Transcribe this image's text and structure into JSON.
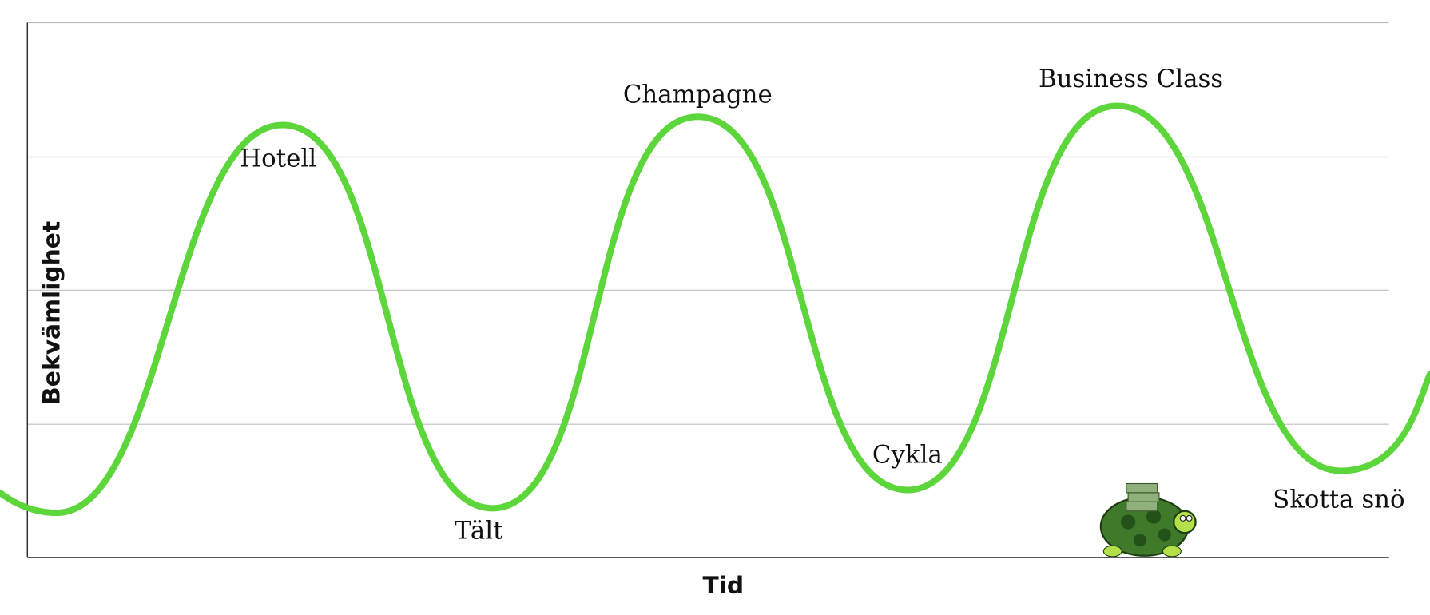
{
  "axes": {
    "x_label": "Tid",
    "y_label": "Bekvämlighet"
  },
  "annotations": [
    "Hotell",
    "Tält",
    "Champagne",
    "Cykla",
    "Business Class",
    "Skotta snö"
  ]
}
